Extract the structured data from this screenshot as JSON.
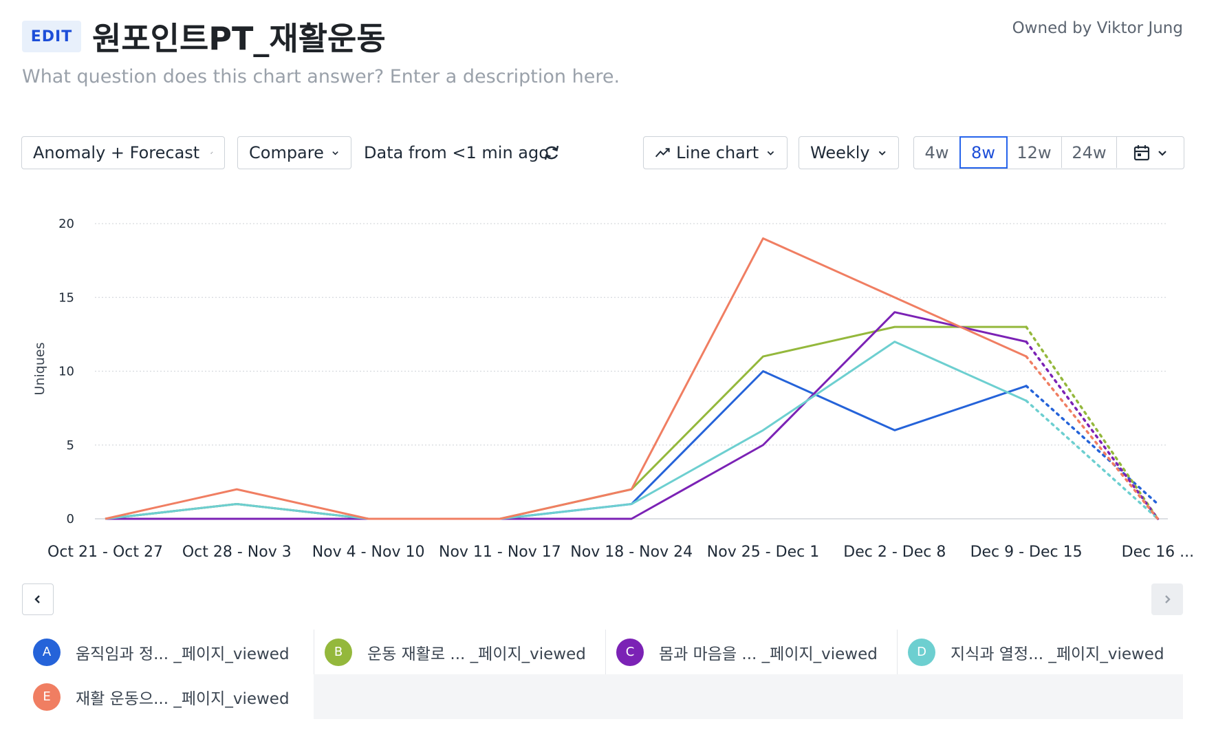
{
  "header": {
    "edit_label": "EDIT",
    "title": "원포인트PT_재활운동",
    "owner": "Owned by Viktor Jung",
    "description_placeholder": "What question does this chart answer? Enter a description here."
  },
  "toolbar": {
    "anomaly_label": "Anomaly + Forecast",
    "compare_label": "Compare",
    "data_freshness": "Data from <1 min ago",
    "chart_type_label": "Line chart",
    "interval_label": "Weekly",
    "ranges": [
      "4w",
      "8w",
      "12w",
      "24w"
    ],
    "active_range": "8w"
  },
  "chart_data": {
    "type": "line",
    "ylabel": "Uniques",
    "ylim": [
      0,
      20
    ],
    "yticks": [
      0,
      5,
      10,
      15,
      20
    ],
    "grid": true,
    "categories": [
      "Oct 21 - Oct 27",
      "Oct 28 - Nov 3",
      "Nov 4 - Nov 10",
      "Nov 11 - Nov 17",
      "Nov 18 - Nov 24",
      "Nov 25 - Dec 1",
      "Dec 2 - Dec 8",
      "Dec 9 - Dec 15",
      "Dec 16 ..."
    ],
    "forecast_from_index": 7,
    "series": [
      {
        "name": "움직임과 정... _페이지_viewed",
        "letter": "A",
        "color": "#2563d9",
        "values": [
          0,
          1,
          0,
          0,
          1,
          10,
          6,
          9,
          1
        ]
      },
      {
        "name": "운동 재활로 ... _페이지_viewed",
        "letter": "B",
        "color": "#94b83c",
        "values": [
          0,
          1,
          0,
          0,
          2,
          11,
          13,
          13,
          0
        ]
      },
      {
        "name": "몸과 마음을 ... _페이지_viewed",
        "letter": "C",
        "color": "#7b22b5",
        "values": [
          0,
          0,
          0,
          0,
          0,
          5,
          14,
          12,
          0
        ]
      },
      {
        "name": "지식과 열정... _페이지_viewed",
        "letter": "D",
        "color": "#6dcfd0",
        "values": [
          0,
          1,
          0,
          0,
          1,
          6,
          12,
          8,
          0
        ]
      },
      {
        "name": "재활 운동으... _페이지_viewed",
        "letter": "E",
        "color": "#f07e62",
        "values": [
          0,
          2,
          0,
          0,
          2,
          19,
          15,
          11,
          0
        ]
      }
    ]
  }
}
